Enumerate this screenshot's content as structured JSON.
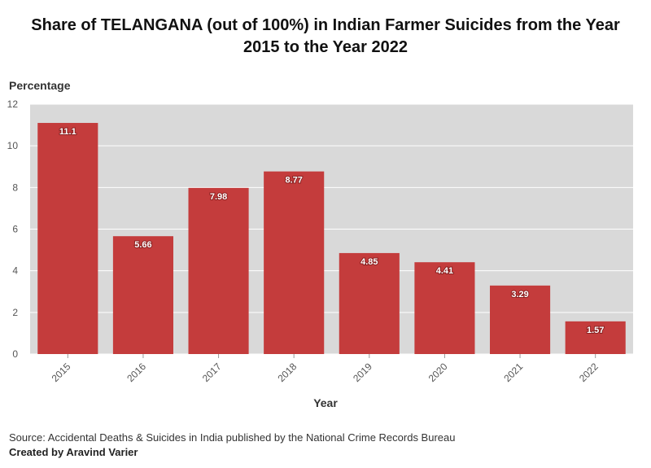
{
  "chart_data": {
    "type": "bar",
    "title_line1": "Share of TELANGANA (out of 100%) in Indian Farmer Suicides from the Year",
    "title_line2": "2015 to the Year 2022",
    "xlabel": "Year",
    "ylabel": "Percentage",
    "categories": [
      "2015",
      "2016",
      "2017",
      "2018",
      "2019",
      "2020",
      "2021",
      "2022"
    ],
    "values": [
      11.1,
      5.66,
      7.98,
      8.77,
      4.85,
      4.41,
      3.29,
      1.57
    ],
    "data_labels": [
      "11.1",
      "5.66",
      "7.98",
      "8.77",
      "4.85",
      "4.41",
      "3.29",
      "1.57"
    ],
    "ylim": [
      0,
      12
    ],
    "yticks": [
      0,
      2,
      4,
      6,
      8,
      10,
      12
    ],
    "grid": true,
    "bar_color": "#c43c3c",
    "plot_background": "#d9d9d9"
  },
  "footer": {
    "source": "Source: Accidental Deaths & Suicides in India published by the National Crime Records Bureau",
    "credit": "Created by Aravind Varier"
  }
}
